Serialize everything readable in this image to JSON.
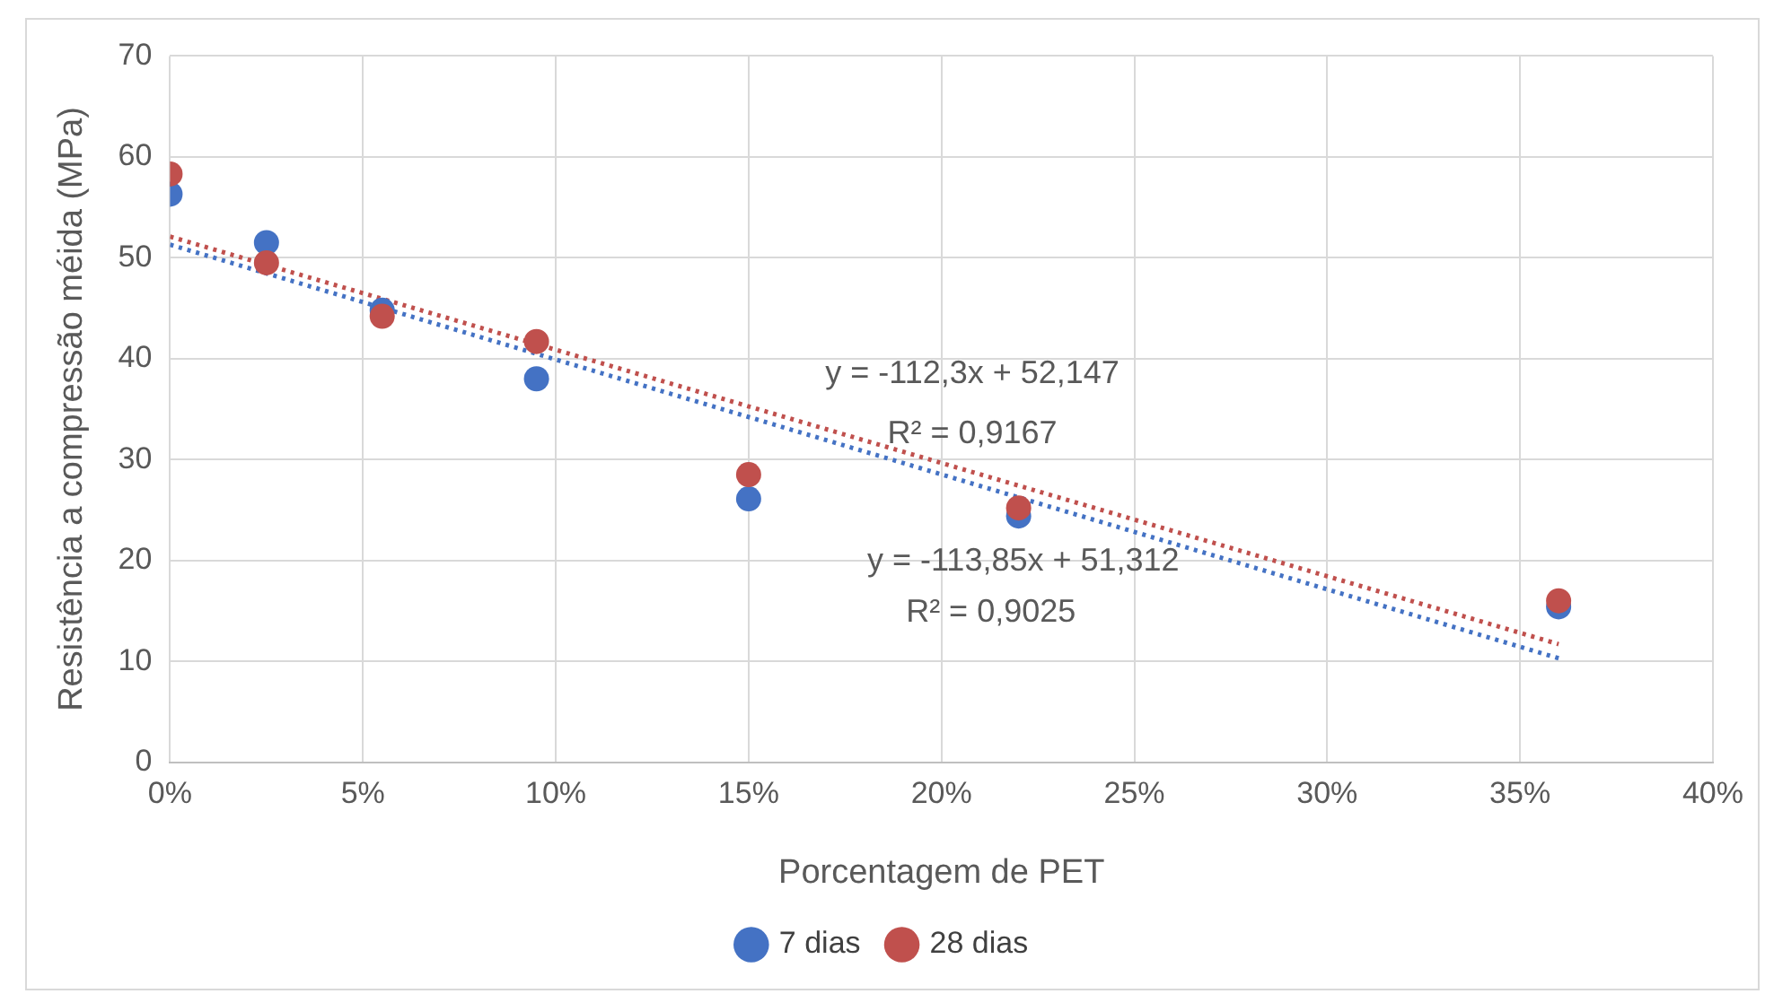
{
  "chart_data": {
    "type": "scatter",
    "xlabel": "Porcentagem de PET",
    "ylabel": "Resistência a compressão méida (MPa)",
    "xlim": [
      0,
      0.4
    ],
    "xticks": [
      {
        "value": 0,
        "label": "0%"
      },
      {
        "value": 0.05,
        "label": "5%"
      },
      {
        "value": 0.1,
        "label": "10%"
      },
      {
        "value": 0.15,
        "label": "15%"
      },
      {
        "value": 0.2,
        "label": "20%"
      },
      {
        "value": 0.25,
        "label": "25%"
      },
      {
        "value": 0.3,
        "label": "30%"
      },
      {
        "value": 0.35,
        "label": "35%"
      },
      {
        "value": 0.4,
        "label": "40%"
      }
    ],
    "ylim": [
      0,
      70
    ],
    "yticks": [
      0,
      10,
      20,
      30,
      40,
      50,
      60,
      70
    ],
    "grid": true,
    "legend": "bottom",
    "marker": "circle",
    "series": [
      {
        "name": "7 dias",
        "color": "#4472c4",
        "x": [
          0,
          0.025,
          0.055,
          0.095,
          0.15,
          0.22,
          0.36
        ],
        "values": [
          56.3,
          51.5,
          44.8,
          38.0,
          26.1,
          24.4,
          15.4
        ]
      },
      {
        "name": "28 dias",
        "color": "#c0504d",
        "x": [
          0,
          0.025,
          0.055,
          0.095,
          0.15,
          0.22,
          0.36
        ],
        "values": [
          58.3,
          49.5,
          44.2,
          41.7,
          28.5,
          25.2,
          16.0
        ]
      },
      {
        "type": "line",
        "color": "#4472c4",
        "line_style": "dotted",
        "marker": "none",
        "x": [
          0,
          0.36
        ],
        "values": [
          51.3,
          10.3
        ]
      },
      {
        "type": "line",
        "color": "#c0504d",
        "line_style": "dotted",
        "marker": "none",
        "x": [
          0,
          0.36
        ],
        "values": [
          52.1,
          11.7
        ]
      }
    ],
    "annotations": [
      "y = -112,3x + 52,147",
      "R² = 0,9167",
      "y = -113,85x + 51,312",
      "R² = 0,9025"
    ]
  }
}
